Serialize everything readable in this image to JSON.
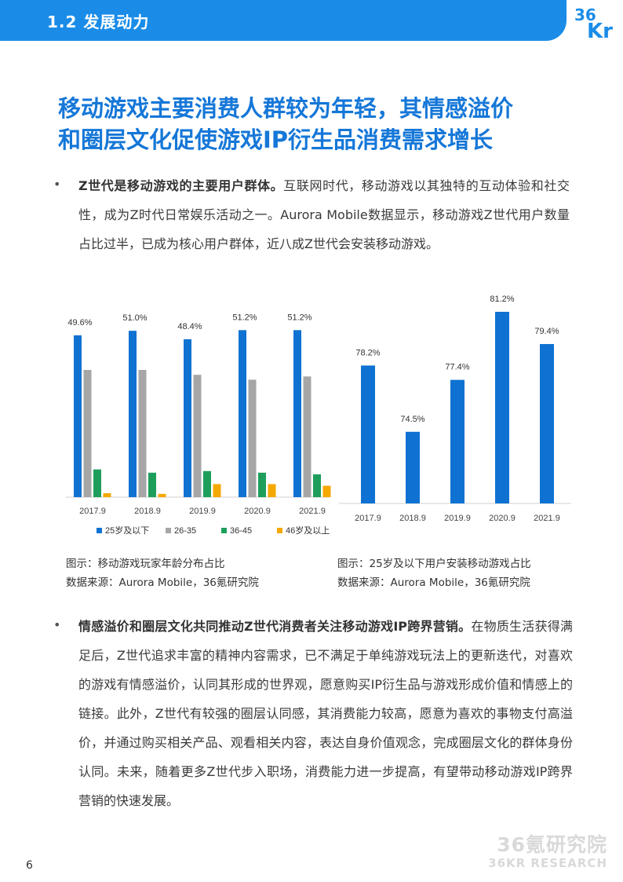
{
  "header": {
    "section": "1.2 发展动力",
    "logo_text": "36Kr",
    "accent_color": "#1a8ce8"
  },
  "headline": {
    "line1": "移动游戏主要消费人群较为年轻，其情感溢价",
    "line2": "和圈层文化促使游戏IP衍生品消费需求增长"
  },
  "bullets": [
    {
      "lead": "Z世代是移动游戏的主要用户群体。",
      "body": "互联网时代，移动游戏以其独特的互动体验和社交性，成为Z时代日常娱乐活动之一。Aurora Mobile数据显示，移动游戏Z世代用户数量占比过半，已成为核心用户群体，近八成Z世代会安装移动游戏。"
    },
    {
      "lead": "情感溢价和圈层文化共同推动Z世代消费者关注移动游戏IP跨界营销。",
      "body": "在物质生活获得满足后，Z世代追求丰富的精神内容需求，已不满足于单纯游戏玩法上的更新迭代，对喜欢的游戏有情感溢价，认同其形成的世界观，愿意购买IP衍生品与游戏形成价值和情感上的链接。此外，Z世代有较强的圈层认同感，其消费能力较高，愿意为喜欢的事物支付高溢价，并通过购买相关产品、观看相关内容，表达自身价值观念，完成圈层文化的群体身份认同。未来，随着更多Z世代步入职场，消费能力进一步提高，有望带动移动游戏IP跨界营销的快速发展。"
    }
  ],
  "chart_data": [
    {
      "type": "bar",
      "categories": [
        "2017.9",
        "2018.9",
        "2019.9",
        "2020.9",
        "2021.9"
      ],
      "series": [
        {
          "name": "25岁及以下",
          "values": [
            49.6,
            51.0,
            48.4,
            51.2,
            51.2
          ],
          "color": "#0f72d2"
        },
        {
          "name": "26-35",
          "values": [
            39.0,
            39.0,
            37.5,
            36.0,
            37.0
          ],
          "color": "#a6a6a6"
        },
        {
          "name": "36-45",
          "values": [
            8.5,
            7.5,
            8.0,
            7.5,
            7.0
          ],
          "color": "#1e9e5b"
        },
        {
          "name": "46岁及以上",
          "values": [
            1.2,
            1.0,
            4.0,
            4.0,
            3.5
          ],
          "color": "#f5a800"
        }
      ],
      "data_labels_series": "25岁及以下",
      "ylim": [
        0,
        52
      ],
      "grid": false,
      "legend": "bottom",
      "caption": "图示：移动游戏玩家年龄分布占比",
      "source": "数据来源：Aurora Mobile，36氪研究院"
    },
    {
      "type": "bar",
      "categories": [
        "2017.9",
        "2018.9",
        "2019.9",
        "2020.9",
        "2021.9"
      ],
      "series": [
        {
          "name": "",
          "values": [
            78.2,
            74.5,
            77.4,
            81.2,
            79.4
          ],
          "color": "#0f72d2"
        }
      ],
      "ylim": [
        70.5,
        81.2
      ],
      "grid": false,
      "caption": "图示：25岁及以下用户安装移动游戏占比",
      "source": "数据来源：Aurora Mobile，36氪研究院"
    }
  ],
  "watermark": {
    "cn": "36氪研究院",
    "en": "36KR RESEARCH"
  },
  "page_number": "6"
}
